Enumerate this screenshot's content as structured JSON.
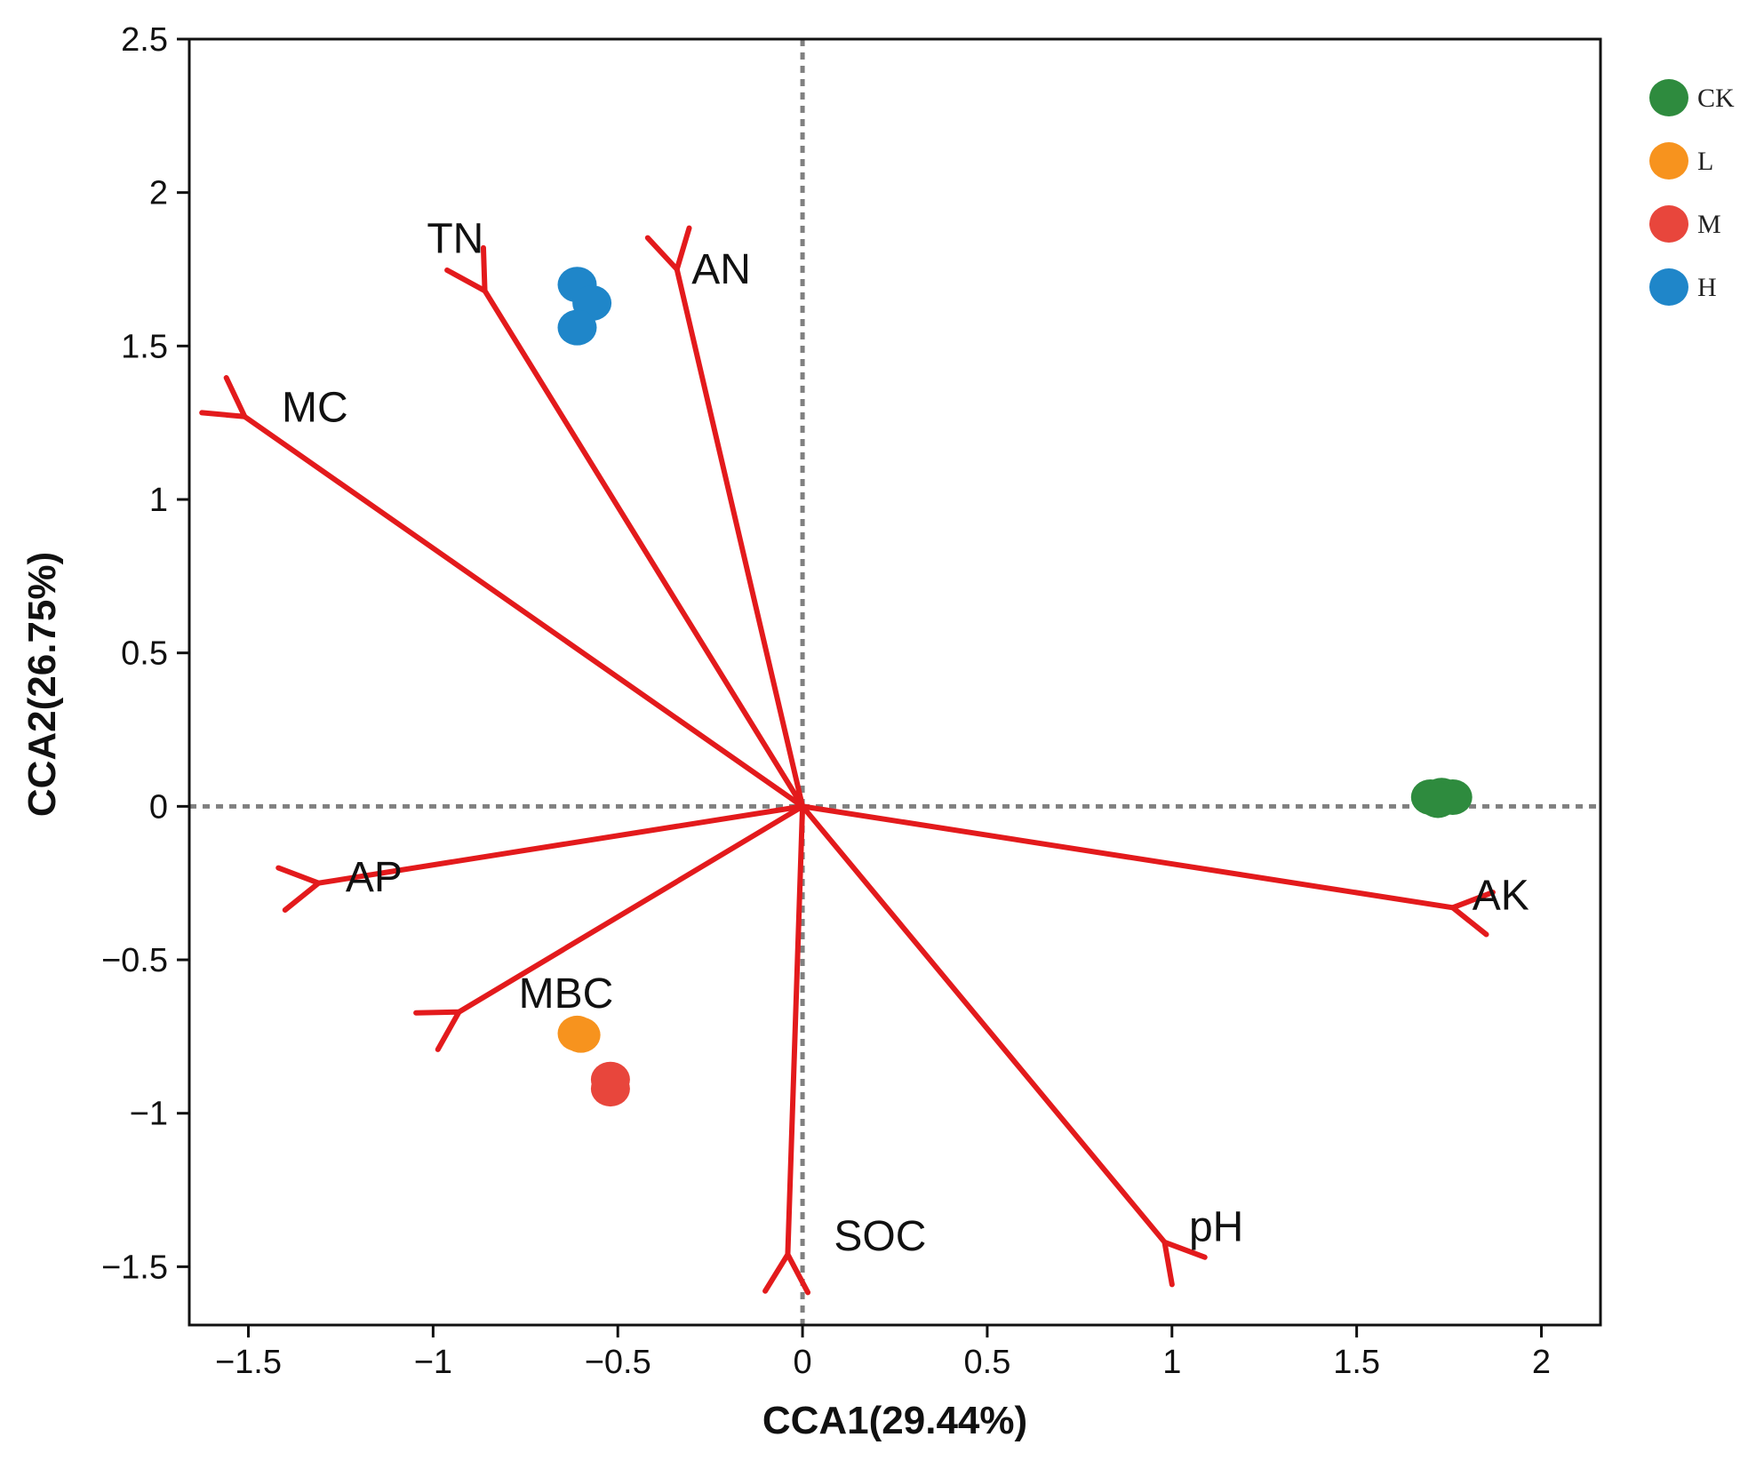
{
  "chart_data": {
    "type": "scatter",
    "subtype": "CCA biplot",
    "title": "",
    "xlabel": "CCA1(29.44%)",
    "ylabel": "CCA2(26.75%)",
    "xlim": [
      -1.66,
      2.16
    ],
    "ylim": [
      -1.69,
      2.5
    ],
    "x_ticks": [
      {
        "value": -1.5,
        "label": "−1.5"
      },
      {
        "value": -1.0,
        "label": "−1"
      },
      {
        "value": -0.5,
        "label": "−0.5"
      },
      {
        "value": 0,
        "label": "0"
      },
      {
        "value": 0.5,
        "label": "0.5"
      },
      {
        "value": 1.0,
        "label": "1"
      },
      {
        "value": 1.5,
        "label": "1.5"
      },
      {
        "value": 2.0,
        "label": "2"
      }
    ],
    "y_ticks": [
      {
        "value": -1.5,
        "label": "−1.5"
      },
      {
        "value": -1.0,
        "label": "−1"
      },
      {
        "value": -0.5,
        "label": "−0.5"
      },
      {
        "value": 0,
        "label": "0"
      },
      {
        "value": 0.5,
        "label": "0.5"
      },
      {
        "value": 1.0,
        "label": "1"
      },
      {
        "value": 1.5,
        "label": "1.5"
      },
      {
        "value": 2.0,
        "label": "2"
      },
      {
        "value": 2.5,
        "label": "2.5"
      }
    ],
    "zero_lines": true,
    "arrow_color": "#e31a1c",
    "arrows": [
      {
        "name": "TN",
        "x": -0.86,
        "y": 1.68,
        "label_x": -0.94,
        "label_y": 1.84
      },
      {
        "name": "AN",
        "x": -0.34,
        "y": 1.75,
        "label_x": -0.22,
        "label_y": 1.74
      },
      {
        "name": "MC",
        "x": -1.51,
        "y": 1.27,
        "label_x": -1.32,
        "label_y": 1.29
      },
      {
        "name": "AP",
        "x": -1.31,
        "y": -0.25,
        "label_x": -1.16,
        "label_y": -0.24
      },
      {
        "name": "MBC",
        "x": -0.93,
        "y": -0.67,
        "label_x": -0.64,
        "label_y": -0.62
      },
      {
        "name": "SOC",
        "x": -0.04,
        "y": -1.46,
        "label_x": 0.21,
        "label_y": -1.41
      },
      {
        "name": "pH",
        "x": 0.98,
        "y": -1.42,
        "label_x": 1.12,
        "label_y": -1.38
      },
      {
        "name": "AK",
        "x": 1.76,
        "y": -0.33,
        "label_x": 1.89,
        "label_y": -0.3
      }
    ],
    "series": [
      {
        "name": "CK",
        "color": "#2e8b3e",
        "points": [
          {
            "x": 1.7,
            "y": 0.03
          },
          {
            "x": 1.73,
            "y": 0.035
          },
          {
            "x": 1.76,
            "y": 0.03
          },
          {
            "x": 1.72,
            "y": 0.02
          }
        ]
      },
      {
        "name": "L",
        "color": "#f7931e",
        "points": [
          {
            "x": -0.61,
            "y": -0.74
          },
          {
            "x": -0.6,
            "y": -0.745
          }
        ]
      },
      {
        "name": "M",
        "color": "#e8463c",
        "points": [
          {
            "x": -0.52,
            "y": -0.89
          },
          {
            "x": -0.52,
            "y": -0.92
          }
        ]
      },
      {
        "name": "H",
        "color": "#1f86c9",
        "points": [
          {
            "x": -0.61,
            "y": 1.7
          },
          {
            "x": -0.57,
            "y": 1.64
          },
          {
            "x": -0.61,
            "y": 1.56
          }
        ]
      }
    ],
    "legend": {
      "position": "right-top",
      "entries": [
        "CK",
        "L",
        "M",
        "H"
      ]
    }
  }
}
